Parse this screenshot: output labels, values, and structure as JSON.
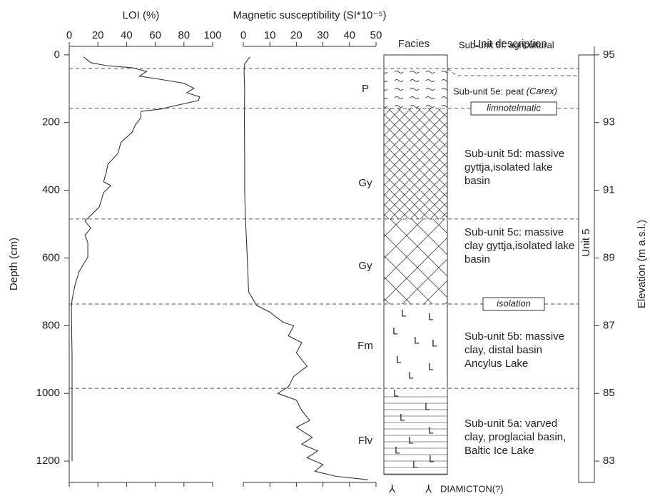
{
  "chart_data": {
    "type": "profile",
    "y_label": "Depth (cm)",
    "ylim": [
      -25,
      1263
    ],
    "yticks": [
      0,
      200,
      400,
      600,
      800,
      1000,
      1200
    ],
    "y2_label": "Elevation (m a.s.l.)",
    "y2lim": [
      95.25,
      82.37
    ],
    "y2ticks": [
      95,
      93,
      91,
      89,
      87,
      85,
      83
    ],
    "boundaries": [
      40,
      158,
      485,
      736,
      985
    ],
    "panels": [
      {
        "title": "LOI (%)",
        "xlim": [
          0,
          100
        ],
        "xticks": [
          0,
          20,
          40,
          60,
          80,
          100
        ],
        "depth": [
          6,
          23,
          32,
          38,
          49,
          63,
          74,
          84,
          99,
          112,
          124,
          135,
          150,
          160,
          167,
          186,
          207,
          228,
          259,
          291,
          323,
          344,
          375,
          386,
          407,
          449,
          470,
          491,
          512,
          533,
          555,
          597,
          639,
          681,
          724,
          745,
          892,
          1103,
          1200
        ],
        "values": [
          10,
          15,
          26,
          44,
          54,
          49,
          66,
          80,
          87,
          82,
          91,
          90,
          74,
          64,
          50,
          50,
          46,
          44,
          36,
          34,
          27,
          26,
          24,
          29,
          24,
          21,
          16,
          11,
          15,
          11,
          13,
          13,
          7,
          4,
          2,
          1.5,
          2,
          2,
          2
        ]
      },
      {
        "title": "Magnetic susceptibility (SI*10⁻⁵)",
        "xlim": [
          0,
          50
        ],
        "xticks": [
          0,
          10,
          20,
          30,
          40,
          50
        ],
        "depth": [
          6,
          27,
          49,
          100,
          200,
          300,
          400,
          485,
          550,
          620,
          700,
          740,
          760,
          790,
          800,
          830,
          850,
          880,
          920,
          950,
          980,
          1000,
          1020,
          1050,
          1080,
          1100,
          1130,
          1150,
          1170,
          1190,
          1210,
          1230,
          1245,
          1255
        ],
        "values": [
          2.5,
          0.5,
          0.3,
          0.5,
          0.4,
          0.5,
          0.5,
          0.8,
          1.2,
          1.6,
          2,
          5,
          10,
          15,
          19,
          17,
          22,
          20,
          24,
          19,
          17,
          13,
          20,
          22,
          25,
          20,
          26,
          22,
          28,
          24,
          30,
          27,
          35,
          47
        ]
      }
    ],
    "facies_title": "Facies",
    "facies": [
      "P",
      "Gy",
      "Gy",
      "Fm",
      "Flv"
    ],
    "description_title": "Unit description",
    "descriptions": [
      {
        "lines": [
          "Sub-unit 5f: agricultural"
        ]
      },
      {
        "lines": [
          "Sub-unit 5e: peat "
        ],
        "italic": "(Carex)"
      },
      {
        "lines": [
          "Sub-unit 5d: massive",
          "gyttja,isolated lake",
          "basin"
        ]
      },
      {
        "lines": [
          "Sub-unit 5c: massive",
          "clay gyttja,isolated lake",
          "basin"
        ]
      },
      {
        "lines": [
          "Sub-unit 5b: massive",
          "clay, distal basin",
          "Ancylus Lake"
        ]
      },
      {
        "lines": [
          "Sub-unit 5a: varved",
          "clay, proglacial basin,",
          "Baltic Ice Lake"
        ]
      }
    ],
    "events": [
      "limnotelmatic",
      "isolation"
    ],
    "unit": "Unit 5",
    "base": "DIAMICTON(?)"
  }
}
